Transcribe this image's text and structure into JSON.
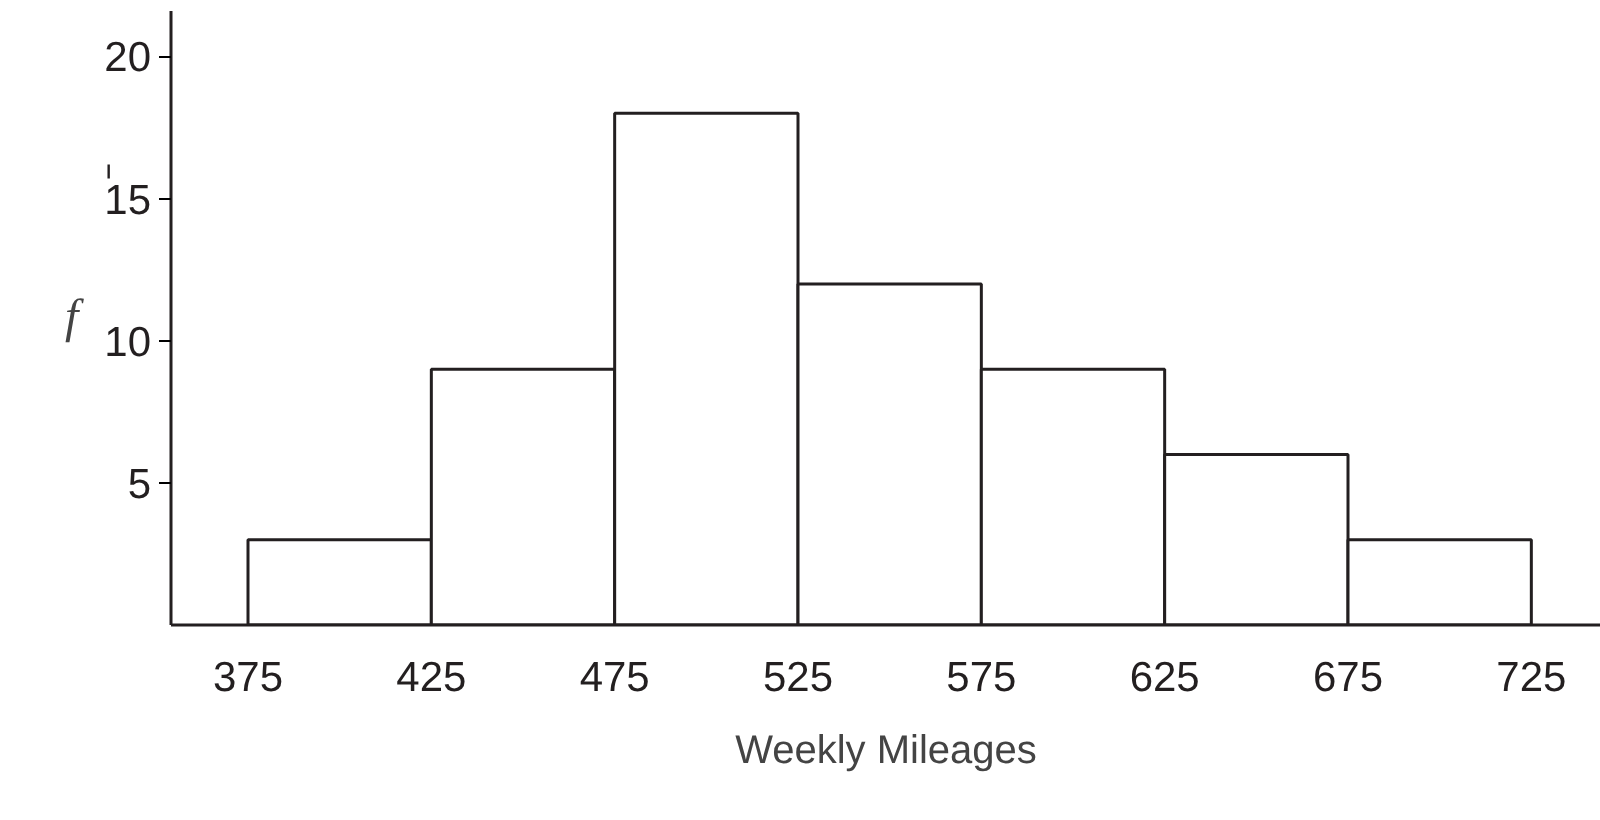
{
  "chart_data": {
    "type": "histogram",
    "xlabel": "Weekly Mileages",
    "ylabel": "f",
    "bins": [
      375,
      425,
      475,
      525,
      575,
      625,
      675,
      725
    ],
    "values": [
      3,
      9,
      18,
      12,
      9,
      6,
      3
    ],
    "color": "#ffffff",
    "xlim": [
      354,
      744
    ],
    "ylim": [
      0,
      21.6
    ],
    "xticks": [
      375,
      425,
      475,
      525,
      575,
      625,
      675,
      725
    ],
    "yticks": [
      5,
      10,
      15,
      20
    ],
    "grid": false
  }
}
